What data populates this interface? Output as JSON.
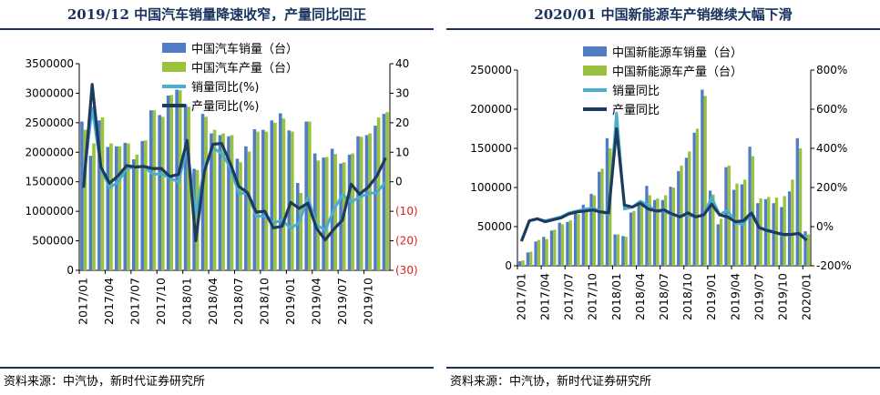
{
  "charts": [
    {
      "title": "2019/12 中国汽车销量降速收窄，产量同比回正",
      "source": "资料来源：中汽协，新时代证券研究所"
    },
    {
      "title": "2020/01 中国新能源车产销继续大幅下滑",
      "source": "资料来源：中汽协，新时代证券研究所"
    }
  ],
  "chart_data": [
    {
      "type": "bar",
      "title": "2019/12 中国汽车销量降速收窄，产量同比回正",
      "x_tick_labels": [
        "2017/01",
        "2017/04",
        "2017/07",
        "2017/10",
        "2018/01",
        "2018/04",
        "2018/07",
        "2018/10",
        "2019/01",
        "2019/04",
        "2019/07",
        "2019/10"
      ],
      "categories": [
        "2017/01",
        "2017/02",
        "2017/03",
        "2017/04",
        "2017/05",
        "2017/06",
        "2017/07",
        "2017/08",
        "2017/09",
        "2017/10",
        "2017/11",
        "2017/12",
        "2018/01",
        "2018/02",
        "2018/03",
        "2018/04",
        "2018/05",
        "2018/06",
        "2018/07",
        "2018/08",
        "2018/09",
        "2018/10",
        "2018/11",
        "2018/12",
        "2019/01",
        "2019/02",
        "2019/03",
        "2019/04",
        "2019/05",
        "2019/06",
        "2019/07",
        "2019/08",
        "2019/09",
        "2019/10",
        "2019/11",
        "2019/12"
      ],
      "y_left": {
        "ylim": [
          0,
          3500000
        ],
        "ticks": [
          "0",
          "500000",
          "1000000",
          "1500000",
          "2000000",
          "2500000",
          "3000000",
          "3500000"
        ]
      },
      "y_right": {
        "ylim": [
          -30,
          40
        ],
        "ticks": [
          "(30)",
          "(20)",
          "(10)",
          "0",
          "10",
          "20",
          "30",
          "40"
        ],
        "negative_color": "#e0201b"
      },
      "legend_position": "top-center",
      "series": [
        {
          "name": "中国汽车销量（台）",
          "kind": "bar",
          "axis": "left",
          "color": "#4f7cc4",
          "values": [
            2520000,
            1940000,
            2540000,
            2090000,
            2100000,
            2160000,
            1880000,
            2190000,
            2710000,
            2630000,
            2960000,
            3060000,
            2810000,
            1720000,
            2650000,
            2320000,
            2290000,
            2270000,
            1890000,
            2100000,
            2390000,
            2380000,
            2540000,
            2660000,
            2370000,
            1480000,
            2520000,
            1980000,
            1910000,
            2060000,
            1810000,
            1960000,
            2270000,
            2290000,
            2450000,
            2650000
          ]
        },
        {
          "name": "中国汽车产量（台）",
          "kind": "bar",
          "axis": "left",
          "color": "#9ac23c",
          "values": [
            2380000,
            2150000,
            2590000,
            2150000,
            2100000,
            2150000,
            1960000,
            2200000,
            2710000,
            2600000,
            2970000,
            3050000,
            2770000,
            1700000,
            2600000,
            2380000,
            2320000,
            2290000,
            1830000,
            2010000,
            2350000,
            2350000,
            2500000,
            2570000,
            2350000,
            1310000,
            2520000,
            1860000,
            1920000,
            1970000,
            1830000,
            1980000,
            2260000,
            2320000,
            2590000,
            2680000
          ]
        },
        {
          "name": "销量同比(%)",
          "kind": "line",
          "axis": "right",
          "color": "#4aaed1",
          "values": [
            0.2,
            25,
            4.7,
            -2,
            -0.1,
            4.5,
            5,
            5.3,
            2.5,
            2.7,
            1.3,
            -0.1,
            11.6,
            -11,
            4.8,
            11.5,
            9.6,
            4.8,
            -4,
            -3.8,
            -11.6,
            -11.7,
            -13.9,
            -13,
            -15.8,
            -13.8,
            -5.2,
            -14.6,
            -16.4,
            -9.6,
            -4.3,
            -6.9,
            -5.2,
            -4,
            -3.6,
            0
          ]
        },
        {
          "name": "产量同比(%)",
          "kind": "line",
          "axis": "right",
          "color": "#1e3a5f",
          "values": [
            -2,
            33,
            5,
            -0.5,
            2,
            5.5,
            5,
            5.2,
            4.5,
            4.5,
            1.8,
            2.5,
            14,
            -20,
            3.5,
            12.7,
            13,
            6.2,
            -1.6,
            -3.7,
            -10.3,
            -10,
            -15.6,
            -15.1,
            -7,
            -9,
            -7.2,
            -15.8,
            -19.7,
            -16.1,
            -13,
            -0.8,
            -4.2,
            -1.8,
            2,
            8.1
          ]
        }
      ]
    },
    {
      "type": "bar",
      "title": "2020/01 中国新能源车产销继续大幅下滑",
      "x_tick_labels": [
        "2017/01",
        "2017/04",
        "2017/07",
        "2017/10",
        "2018/01",
        "2018/04",
        "2018/07",
        "2018/10",
        "2019/01",
        "2019/04",
        "2019/07",
        "2019/10",
        "2020/01"
      ],
      "categories": [
        "2017/01",
        "2017/02",
        "2017/03",
        "2017/04",
        "2017/05",
        "2017/06",
        "2017/07",
        "2017/08",
        "2017/09",
        "2017/10",
        "2017/11",
        "2017/12",
        "2018/01",
        "2018/02",
        "2018/03",
        "2018/04",
        "2018/05",
        "2018/06",
        "2018/07",
        "2018/08",
        "2018/09",
        "2018/10",
        "2018/11",
        "2018/12",
        "2019/01",
        "2019/02",
        "2019/03",
        "2019/04",
        "2019/05",
        "2019/06",
        "2019/07",
        "2019/08",
        "2019/09",
        "2019/10",
        "2019/11",
        "2019/12",
        "2020/01"
      ],
      "y_left": {
        "ylim": [
          0,
          250000
        ],
        "ticks": [
          "0",
          "50000",
          "100000",
          "150000",
          "200000",
          "250000"
        ]
      },
      "y_right": {
        "ylim": [
          -200,
          800
        ],
        "ticks": [
          "-200%",
          "0%",
          "200%",
          "400%",
          "600%",
          "800%"
        ]
      },
      "legend_position": "top-center",
      "series": [
        {
          "name": "中国新能源车销量（台）",
          "kind": "bar",
          "axis": "left",
          "color": "#4f7cc4",
          "values": [
            5700,
            17000,
            31000,
            37000,
            45000,
            55000,
            56000,
            67000,
            78000,
            92000,
            120000,
            163000,
            40000,
            38000,
            68000,
            82000,
            102000,
            84000,
            84000,
            101000,
            121000,
            138000,
            170000,
            225000,
            96000,
            53000,
            126000,
            97000,
            104000,
            152000,
            80000,
            85000,
            80000,
            75000,
            95000,
            163000,
            44000
          ]
        },
        {
          "name": "中国新能源车产量（台）",
          "kind": "bar",
          "axis": "left",
          "color": "#9ac23c",
          "values": [
            6800,
            18000,
            33000,
            34000,
            46000,
            53000,
            58000,
            66000,
            72000,
            90000,
            124000,
            150000,
            40000,
            37000,
            70000,
            80000,
            90000,
            86000,
            90000,
            100000,
            128000,
            146000,
            175000,
            217000,
            91000,
            60000,
            128000,
            105000,
            110000,
            140000,
            86000,
            88000,
            87000,
            89000,
            110000,
            150000,
            40000
          ]
        },
        {
          "name": "销量同比",
          "kind": "line",
          "axis": "right",
          "color": "#4aaed1",
          "values": [
            -75,
            30,
            40,
            30,
            40,
            50,
            70,
            80,
            90,
            95,
            80,
            60,
            580,
            90,
            100,
            130,
            110,
            75,
            80,
            60,
            55,
            60,
            50,
            60,
            150,
            60,
            85,
            20,
            10,
            80,
            -5,
            -15,
            -30,
            -45,
            -40,
            -35,
            -55
          ]
        },
        {
          "name": "产量同比",
          "kind": "line",
          "axis": "right",
          "color": "#1e3a5f",
          "values": [
            -75,
            30,
            40,
            25,
            35,
            45,
            65,
            75,
            80,
            85,
            75,
            70,
            500,
            110,
            100,
            120,
            90,
            80,
            85,
            65,
            50,
            70,
            50,
            60,
            115,
            60,
            50,
            25,
            30,
            70,
            -5,
            -20,
            -30,
            -40,
            -40,
            -35,
            -70
          ]
        }
      ]
    }
  ]
}
